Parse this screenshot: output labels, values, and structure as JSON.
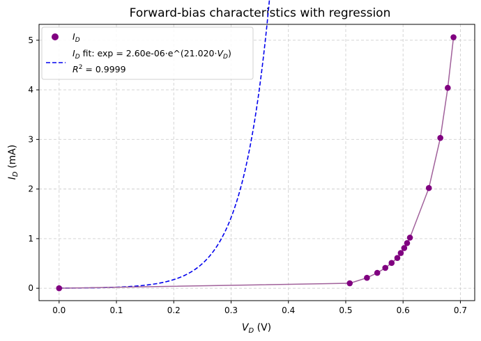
{
  "chart_data": {
    "type": "scatter",
    "title": "Forward-bias characteristics with regression",
    "xlabel_main": "V",
    "xlabel_sub": "D",
    "xlabel_unit": " (V)",
    "ylabel_main": "I",
    "ylabel_sub": "D",
    "ylabel_unit": " (mA)",
    "xlim": [
      -0.035,
      0.725
    ],
    "ylim": [
      -0.25,
      5.32
    ],
    "xticks": [
      0.0,
      0.1,
      0.2,
      0.3,
      0.4,
      0.5,
      0.6,
      0.7
    ],
    "xtick_labels": [
      "0.0",
      "0.1",
      "0.2",
      "0.3",
      "0.4",
      "0.5",
      "0.6",
      "0.7"
    ],
    "yticks": [
      0,
      1,
      2,
      3,
      4,
      5
    ],
    "ytick_labels": [
      "0",
      "1",
      "2",
      "3",
      "4",
      "5"
    ],
    "grid": true,
    "legend_position": "top-left",
    "series": [
      {
        "kind": "scatter",
        "name_main": "I",
        "name_sub": "D",
        "color": "#800080",
        "line_color": "#a0609a",
        "x": [
          0.0,
          0.507,
          0.537,
          0.555,
          0.569,
          0.58,
          0.59,
          0.596,
          0.602,
          0.607,
          0.612,
          0.645,
          0.665,
          0.678,
          0.688
        ],
        "y": [
          0.0,
          0.1,
          0.21,
          0.31,
          0.41,
          0.51,
          0.61,
          0.71,
          0.81,
          0.91,
          1.02,
          2.02,
          3.03,
          4.04,
          5.06
        ]
      },
      {
        "kind": "fit",
        "color": "#0000ee",
        "label_prefix": "I",
        "label_sub": "D",
        "label_mid": " fit: exp = 2.60e-06·e^(21.020·",
        "label_var": "V",
        "label_var_sub": "D",
        "label_end": ")",
        "r2_label": "R",
        "r2_sup": "2",
        "r2_value": " = 0.9999",
        "a": 2.6e-06,
        "b": 21.02
      }
    ]
  }
}
